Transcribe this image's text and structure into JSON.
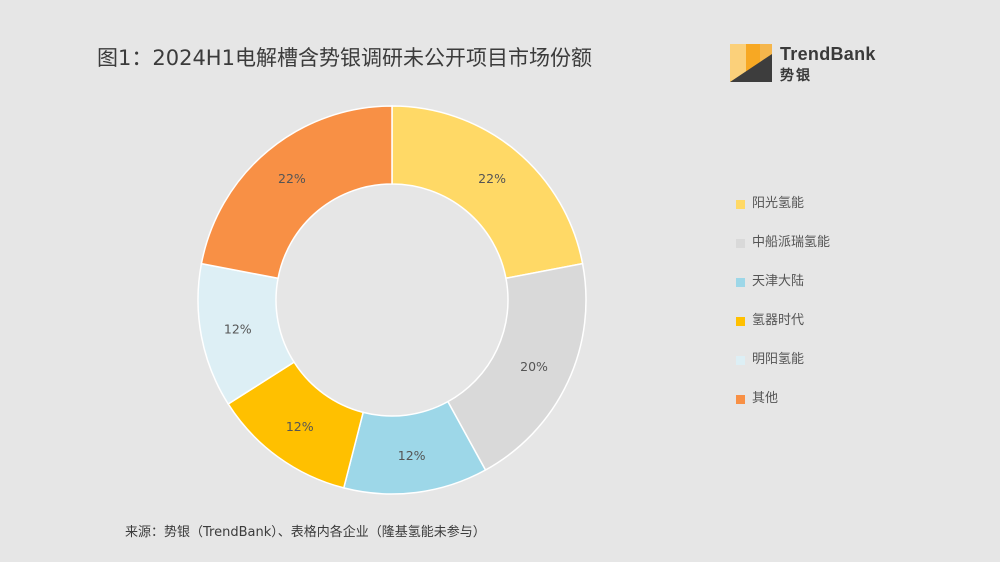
{
  "title": "图1：2024H1电解槽含势银调研未公开项目市场份额",
  "logo": {
    "word": "TrendBank",
    "cn": "势银"
  },
  "source": "来源：势银（TrendBank）、表格内各企业（隆基氢能未参与）",
  "chart_data": {
    "type": "pie",
    "variant": "donut",
    "title": "图1：2024H1电解槽含势银调研未公开项目市场份额",
    "legend_position": "right",
    "categories": [
      "阳光氢能",
      "中船派瑞氢能",
      "天津大陆",
      "氢器时代",
      "明阳氢能",
      "其他"
    ],
    "values": [
      22,
      20,
      12,
      12,
      12,
      22
    ],
    "value_labels": [
      "22%",
      "20%",
      "12%",
      "12%",
      "12%",
      "22%"
    ],
    "colors": [
      "#FFD966",
      "#D9D9D9",
      "#9DD7E8",
      "#FFC000",
      "#DDEFF5",
      "#F89045"
    ],
    "unit": "%"
  }
}
